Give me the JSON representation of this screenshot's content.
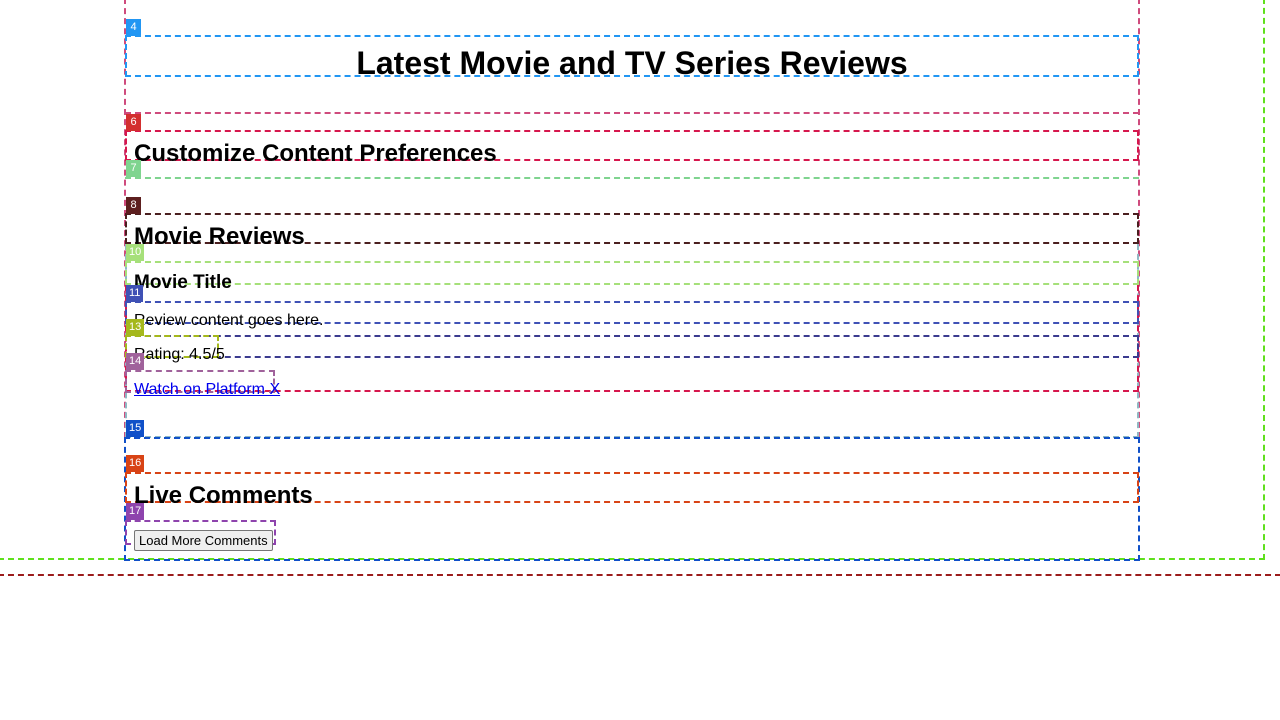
{
  "header": {
    "title": "Latest Movie and TV Series Reviews"
  },
  "preferences": {
    "heading": "Customize Content Preferences"
  },
  "reviews": {
    "heading": "Movie Reviews",
    "items": [
      {
        "title": "Movie Title",
        "content": "Review content goes here.",
        "rating": "Rating: 4.5/5",
        "link_label": "Watch on Platform X"
      }
    ]
  },
  "comments": {
    "heading": "Live Comments",
    "load_more_label": "Load More Comments"
  },
  "overlay_tags": [
    "4",
    "6",
    "7",
    "8",
    "10",
    "11",
    "13",
    "14",
    "15",
    "16",
    "17"
  ],
  "overlay_colors": {
    "4": "#2196f3",
    "6": "#d32f2f",
    "7": "#7fd48f",
    "8": "#5d1f1f",
    "10": "#a6e07a",
    "11": "#3f51b5",
    "13": "#a5b81c",
    "14": "#a0629b",
    "15": "#1050c8",
    "16": "#d84315",
    "17": "#8e44ad"
  }
}
